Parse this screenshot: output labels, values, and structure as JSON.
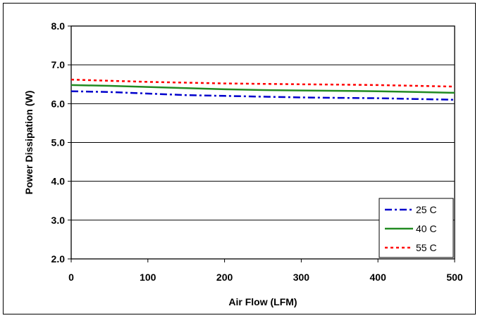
{
  "chart_data": {
    "type": "line",
    "title": "",
    "xlabel": "Air Flow (LFM)",
    "ylabel": "Power Dissipation (W)",
    "xlim": [
      0,
      500
    ],
    "ylim": [
      2.0,
      8.0
    ],
    "xticks": [
      0,
      100,
      200,
      300,
      400,
      500
    ],
    "yticks": [
      "2.0",
      "3.0",
      "4.0",
      "5.0",
      "6.0",
      "7.0",
      "8.0"
    ],
    "grid": "horizontal",
    "legend_position": "bottom-right",
    "series": [
      {
        "name": "25 C",
        "color": "#0000cc",
        "dash": "dash-dot",
        "x": [
          0,
          50,
          100,
          150,
          200,
          250,
          300,
          350,
          400,
          450,
          500
        ],
        "y": [
          6.32,
          6.3,
          6.26,
          6.22,
          6.2,
          6.18,
          6.16,
          6.15,
          6.14,
          6.12,
          6.1
        ]
      },
      {
        "name": "40 C",
        "color": "#228b22",
        "dash": "solid",
        "x": [
          0,
          50,
          100,
          150,
          200,
          250,
          300,
          350,
          400,
          450,
          500
        ],
        "y": [
          6.48,
          6.46,
          6.43,
          6.4,
          6.37,
          6.35,
          6.34,
          6.33,
          6.32,
          6.3,
          6.28
        ]
      },
      {
        "name": "55 C",
        "color": "#ff0000",
        "dash": "dotted",
        "x": [
          0,
          50,
          100,
          150,
          200,
          250,
          300,
          350,
          400,
          450,
          500
        ],
        "y": [
          6.62,
          6.59,
          6.56,
          6.54,
          6.52,
          6.51,
          6.5,
          6.49,
          6.48,
          6.46,
          6.44
        ]
      }
    ]
  }
}
